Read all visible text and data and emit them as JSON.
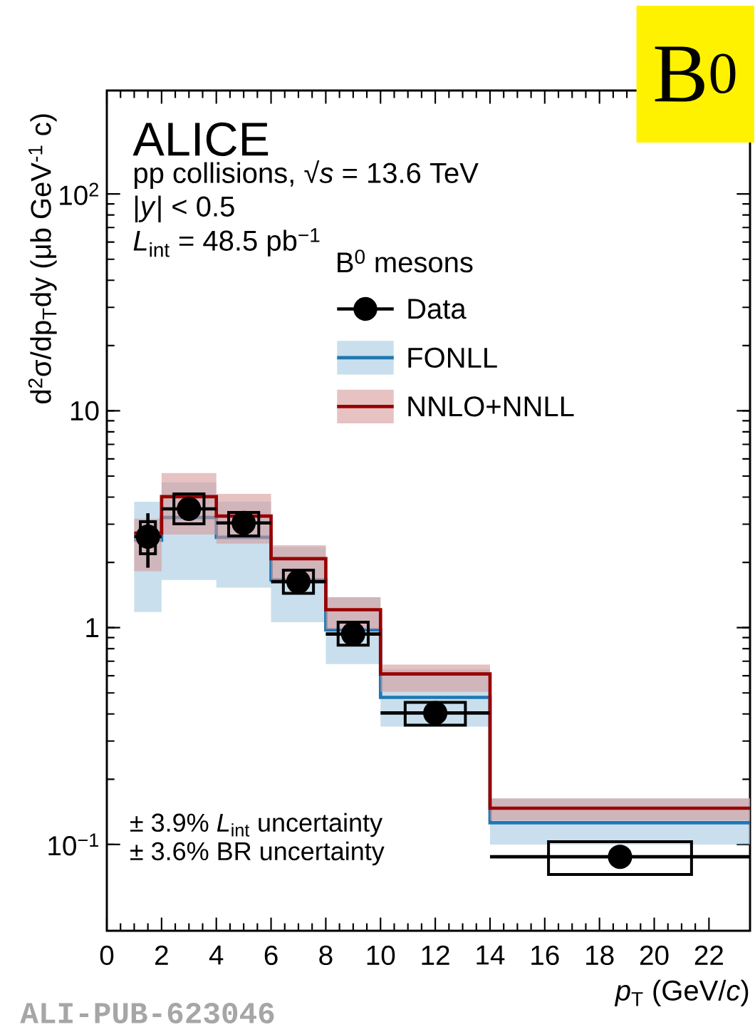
{
  "chart_data": {
    "type": "scatter",
    "title": "B$^{0}$",
    "xlabel": "*p*$_{T}$ (GeV/*c*)",
    "ylabel": "d$^{2}$σ/dp$_{T}$dy (μb GeV$^{-1}$ c)",
    "legend_title": "B$^{0}$ mesons",
    "legend": "top right",
    "log": "y",
    "xlim": [
      0,
      23.5
    ],
    "ylim": [
      0.04,
      300
    ],
    "xticks": [
      0,
      2,
      4,
      6,
      8,
      10,
      12,
      14,
      16,
      18,
      20,
      22
    ],
    "yticks": [
      {
        "value": 0.1,
        "label": "10$^{−1}$"
      },
      1,
      10,
      {
        "value": 100,
        "label": "10$^{2}$"
      }
    ],
    "tick_labels": "xy",
    "annotations": [
      "ALICE",
      "pp collisions, √*s* = 13.6 TeV",
      "|*y*| < 0.5",
      "*L*$_{int}$ = 48.5 pb$^{−1}$",
      "± 3.9%  *L*$_{int}$ uncertainty",
      "± 3.6% BR uncertainty",
      "ALI-PUB-623046"
    ],
    "series": [
      {
        "type": "step",
        "name": "FONLL",
        "color": "#1f77b4",
        "x": [
          1,
          2,
          4,
          6,
          8,
          10,
          14,
          23.5
        ],
        "values": [
          2.53,
          3.22,
          2.61,
          1.66,
          0.977,
          0.477,
          0.126,
          0.126
        ],
        "lower": [
          1.18,
          1.66,
          1.53,
          1.06,
          0.68,
          0.35,
          0.1,
          0.1
        ],
        "upper": [
          3.81,
          4.67,
          3.81,
          2.36,
          1.38,
          0.645,
          0.163,
          0.163
        ]
      },
      {
        "type": "step",
        "name": "NNLO+NNLL",
        "color": "#990000",
        "x": [
          1,
          2,
          4,
          6,
          8,
          10,
          14,
          23.5
        ],
        "values": [
          2.73,
          4.02,
          3.27,
          2.08,
          1.21,
          0.612,
          0.147,
          0.147
        ],
        "lower": [
          1.82,
          2.69,
          2.44,
          1.65,
          0.985,
          0.506,
          0.129,
          0.129
        ],
        "upper": [
          3.18,
          5.16,
          4.14,
          2.4,
          1.38,
          0.675,
          0.163,
          0.163
        ]
      },
      {
        "type": "bar",
        "color": "#000000",
        "x": [
          1.5,
          3,
          5,
          7,
          9,
          12,
          18.75
        ],
        "base": [
          2.19,
          3.01,
          2.65,
          1.44,
          0.83,
          0.355,
          0.0728
        ],
        "values": [
          0.89,
          1.13,
          0.75,
          0.4,
          0.23,
          0.097,
          0.0302
        ]
      },
      {
        "name": "Data",
        "color": "#000000",
        "marker": "circle",
        "x": [
          1.5,
          3,
          5,
          7,
          9,
          12,
          18.75
        ],
        "values": [
          2.63,
          3.53,
          3.04,
          1.63,
          0.935,
          0.404,
          0.0878
        ],
        "errors": [
          0.74,
          null,
          null,
          null,
          null,
          null,
          null
        ],
        "xerrors": [
          0.5,
          1,
          1,
          1,
          1,
          2,
          4.75
        ]
      }
    ]
  }
}
